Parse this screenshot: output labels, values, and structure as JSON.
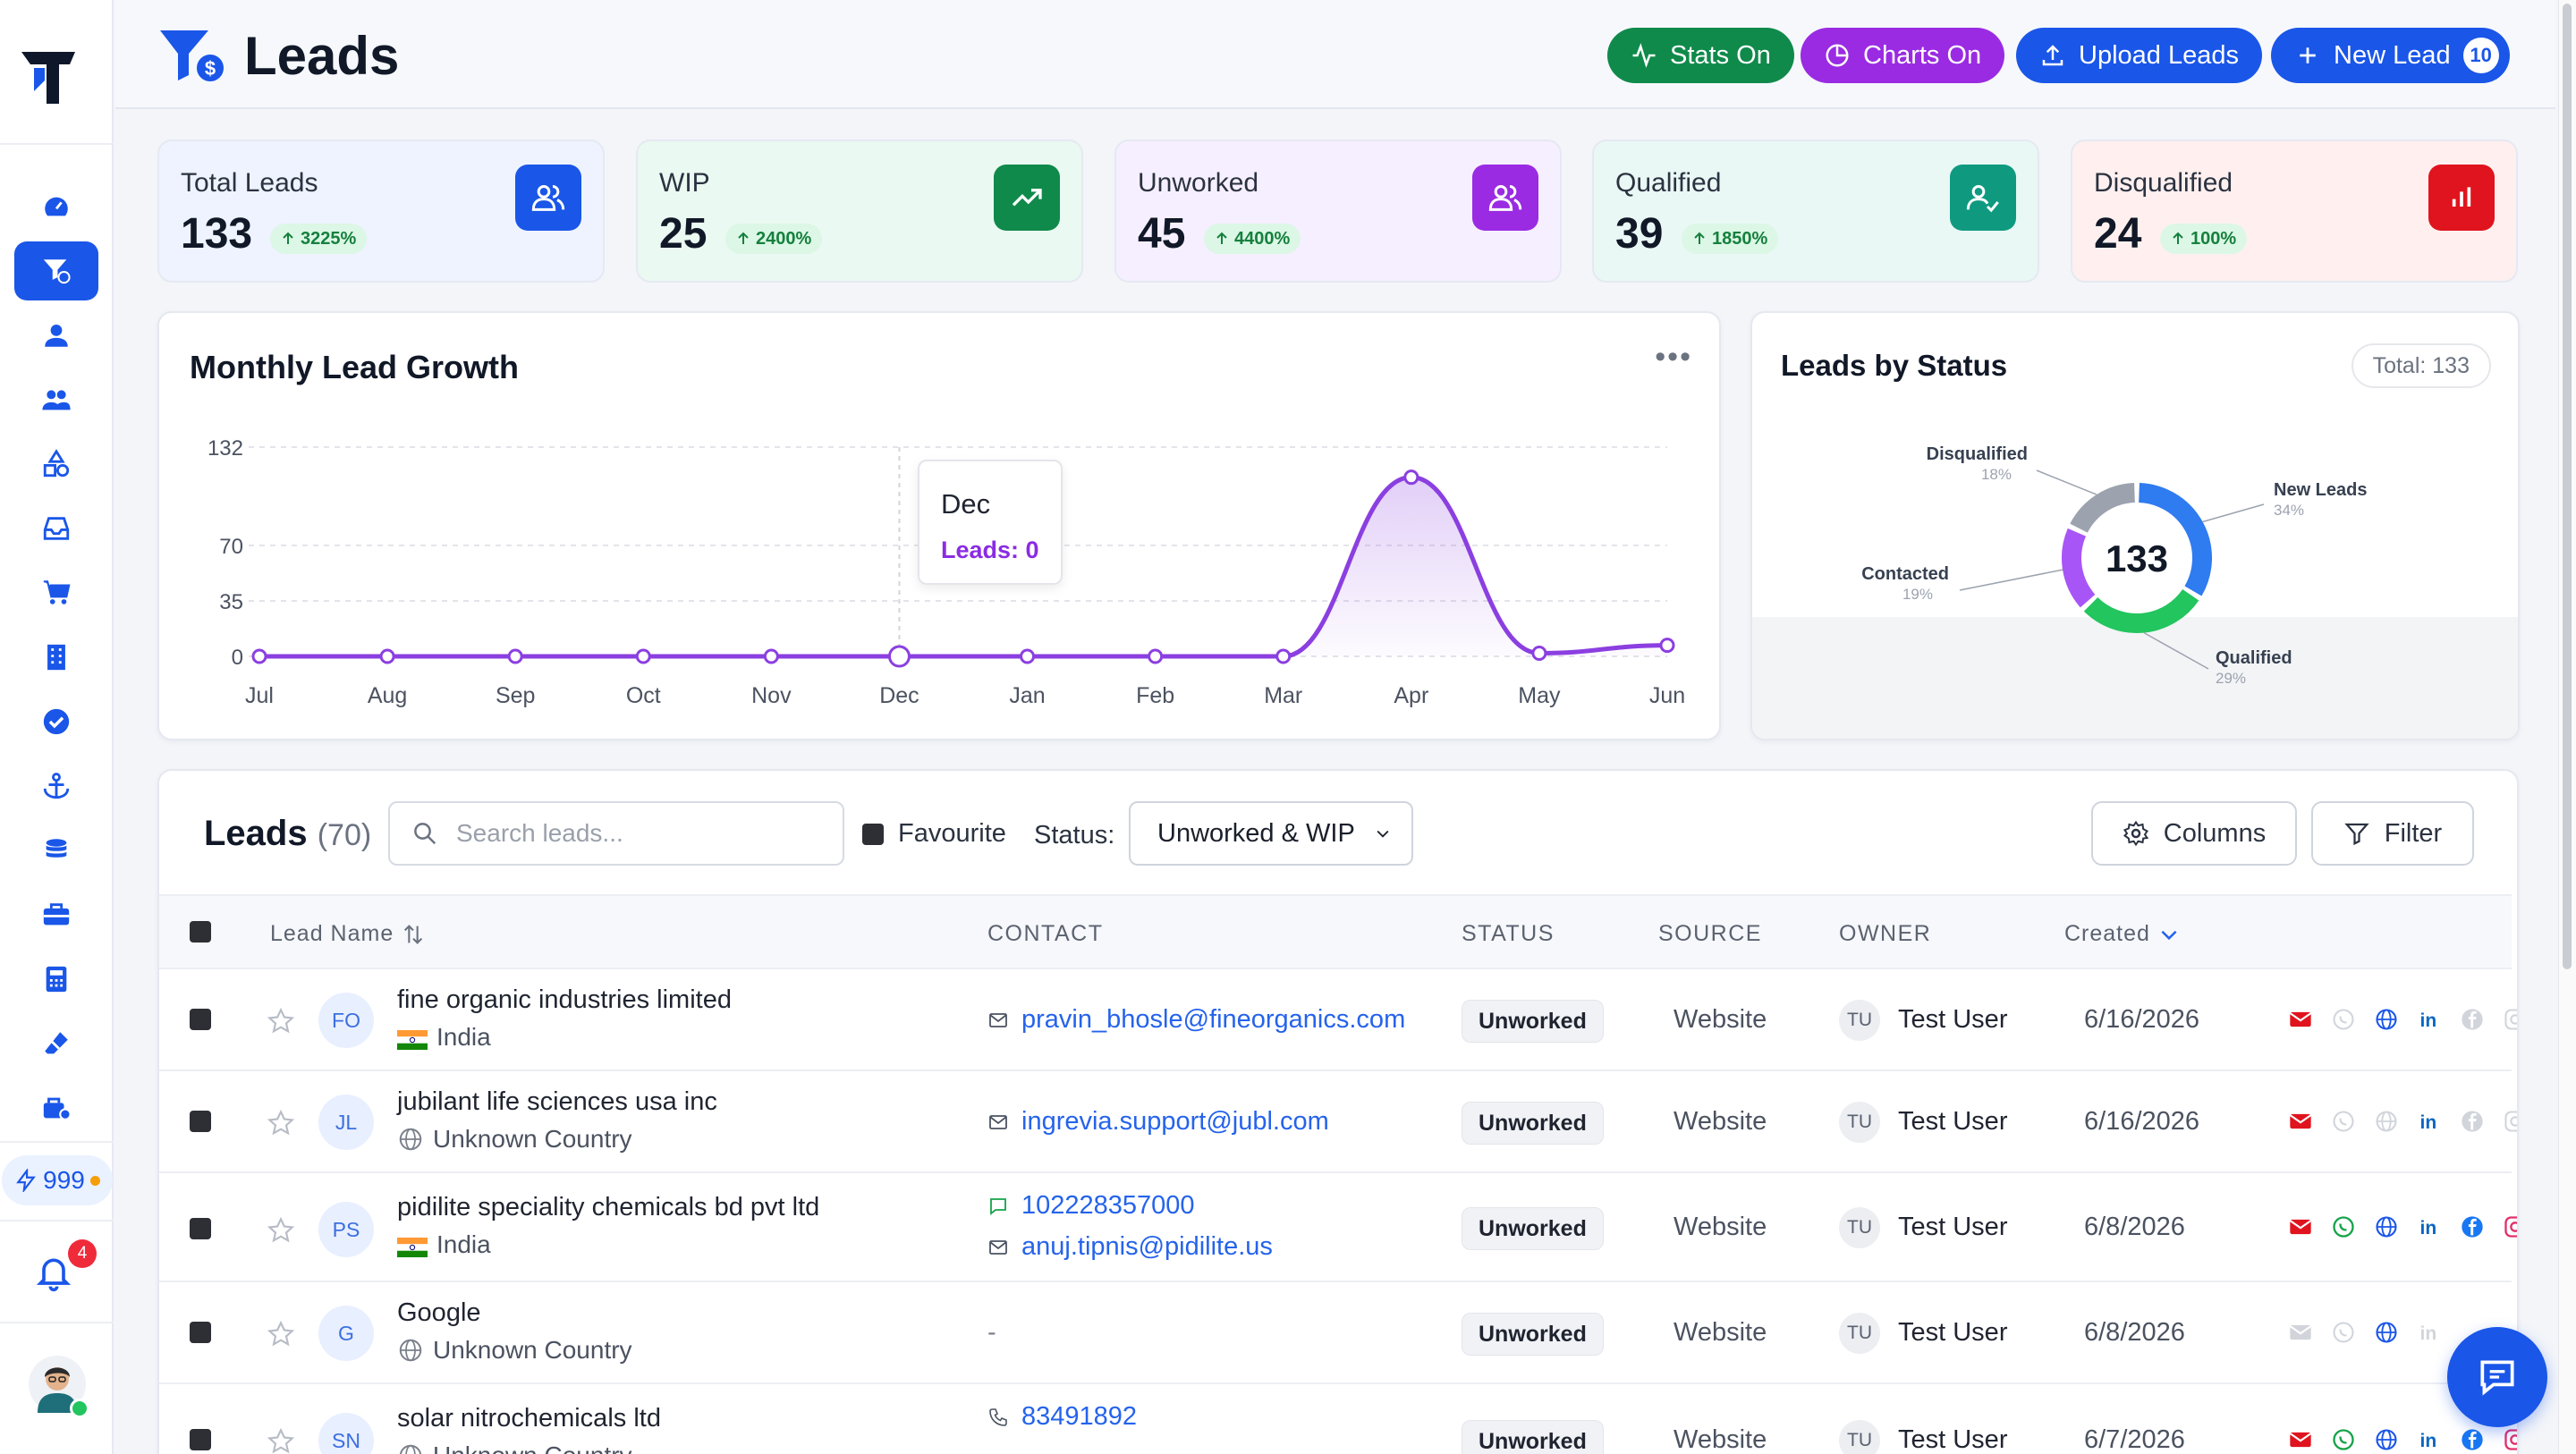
{
  "app": {
    "title": "Leads"
  },
  "credits": {
    "count": "999"
  },
  "notifications": {
    "count": "4"
  },
  "header": {
    "buttons": [
      {
        "label": "Stats On",
        "color": "#0f8a4a"
      },
      {
        "label": "Charts On",
        "color": "#9a2be2"
      },
      {
        "label": "Upload Leads",
        "color": "#1a56e8"
      },
      {
        "label": "New Lead",
        "color": "#1a56e8",
        "count": "10"
      }
    ]
  },
  "stats": [
    {
      "label": "Total Leads",
      "value": "133",
      "trend": "3225%",
      "icon": "users-icon",
      "color": "#1a56e8",
      "bg": "#eef3ff"
    },
    {
      "label": "WIP",
      "value": "25",
      "trend": "2400%",
      "icon": "trending-up-icon",
      "color": "#0f8a4a",
      "bg": "#eaf9f1"
    },
    {
      "label": "Unworked",
      "value": "45",
      "trend": "4400%",
      "icon": "users-icon",
      "color": "#9a2be2",
      "bg": "#f6efff"
    },
    {
      "label": "Qualified",
      "value": "39",
      "trend": "1850%",
      "icon": "user-check-icon",
      "color": "#0f9a80",
      "bg": "#e9f8f5"
    },
    {
      "label": "Disqualified",
      "value": "24",
      "trend": "100%",
      "icon": "bar-chart-icon",
      "color": "#e0141e",
      "bg": "#fff0ef"
    }
  ],
  "growth": {
    "title": "Monthly Lead Growth",
    "more": "•••",
    "tooltip": {
      "month": "Dec",
      "text": "Leads: 0"
    }
  },
  "chart_data": [
    {
      "type": "area",
      "title": "Monthly Lead Growth",
      "x": [
        "Jul",
        "Aug",
        "Sep",
        "Oct",
        "Nov",
        "Dec",
        "Jan",
        "Feb",
        "Mar",
        "Apr",
        "May",
        "Jun"
      ],
      "series": [
        {
          "values": [
            0,
            0,
            0,
            0,
            0,
            0,
            0,
            0,
            0,
            113,
            2,
            7
          ]
        }
      ],
      "yticks": [
        0,
        35,
        70,
        132
      ],
      "ylim": [
        0,
        132
      ],
      "grid": true,
      "color": "#8b3fe0"
    },
    {
      "type": "pie",
      "title": "Leads by Status",
      "total_label": "Total: 133",
      "center": "133",
      "slices": [
        {
          "label": "New Leads",
          "pct": "34%",
          "value": 34,
          "color": "#2f7bf0"
        },
        {
          "label": "Qualified",
          "pct": "29%",
          "value": 29,
          "color": "#22c55e"
        },
        {
          "label": "Contacted",
          "pct": "19%",
          "value": 19,
          "color": "#a855f7"
        },
        {
          "label": "Disqualified",
          "pct": "18%",
          "value": 18,
          "color": "#9ca3af"
        }
      ]
    }
  ],
  "table": {
    "title": "Leads",
    "count": "(70)",
    "search_placeholder": "Search leads...",
    "favourite": "Favourite",
    "status_label": "Status:",
    "status_value": "Unworked & WIP",
    "columns_btn": "Columns",
    "filter_btn": "Filter",
    "headers": [
      "Lead Name",
      "CONTACT",
      "STATUS",
      "SOURCE",
      "OWNER",
      "Created"
    ],
    "rows": [
      {
        "initials": "FO",
        "name": "fine organic industries limited",
        "country": "India",
        "contact": "pravin_bhosle@fineorganics.com",
        "status": "Unworked",
        "source": "Website",
        "owner_initials": "TU",
        "owner": "Test User",
        "created": "6/16/2026"
      },
      {
        "initials": "JL",
        "name": "jubilant life sciences usa inc",
        "country": "Unknown Country",
        "contact": "ingrevia.support@jubl.com",
        "status": "Unworked",
        "source": "Website",
        "owner_initials": "TU",
        "owner": "Test User",
        "created": "6/16/2026"
      },
      {
        "initials": "PS",
        "name": "pidilite speciality chemicals bd pvt ltd",
        "country": "India",
        "phone": "102228357000",
        "contact": "anuj.tipnis@pidilite.us",
        "status": "Unworked",
        "source": "Website",
        "owner_initials": "TU",
        "owner": "Test User",
        "created": "6/8/2026"
      },
      {
        "initials": "G",
        "name": "Google",
        "country": "Unknown Country",
        "contact": "-",
        "status": "Unworked",
        "source": "Website",
        "owner_initials": "TU",
        "owner": "Test User",
        "created": "6/8/2026"
      },
      {
        "initials": "SN",
        "name": "solar nitrochemicals ltd",
        "country": "Unknown Country",
        "phone": "83491892",
        "status": "Unworked",
        "source": "Website",
        "owner_initials": "TU",
        "owner": "Test User",
        "created": "6/7/2026"
      }
    ]
  }
}
